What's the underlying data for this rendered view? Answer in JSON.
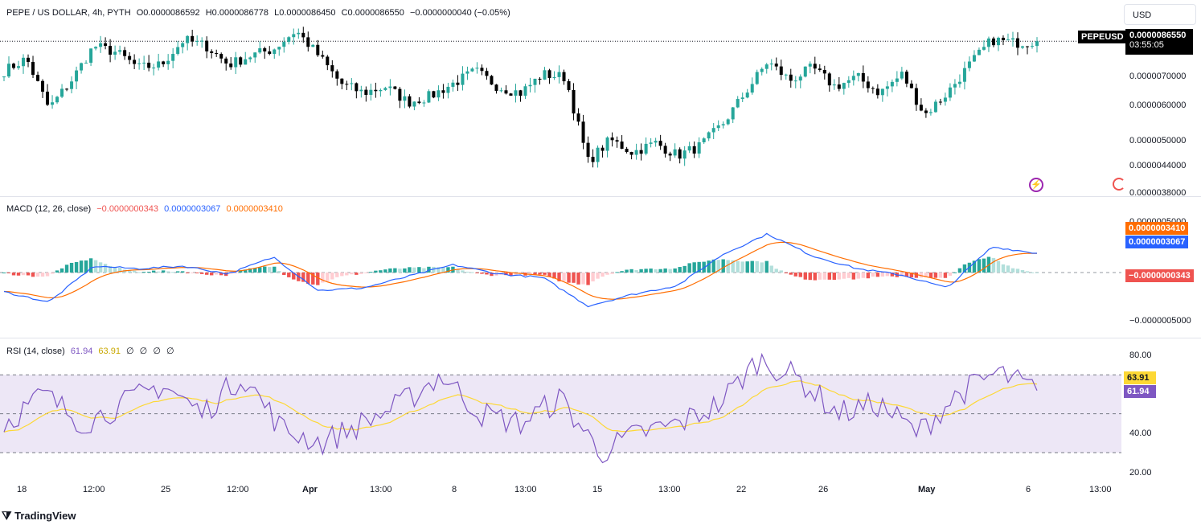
{
  "header": {
    "symbol_line": "PEPE / US DOLLAR, 4h, PYTH",
    "open": "O0.0000086592",
    "high": "H0.0000086778",
    "low": "L0.0000086450",
    "close": "C0.0000086550",
    "change": "−0.0000000040 (−0.05%)"
  },
  "currency_button": "USD",
  "price_tag": {
    "symbol": "PEPEUSD",
    "price": "0.0000086550",
    "countdown": "03:55:05"
  },
  "price_axis": [
    "0.0000070000",
    "0.0000060000",
    "0.0000050000",
    "0.0000044000",
    "0.0000038000"
  ],
  "macd": {
    "label": "MACD (12, 26, close)",
    "hist_value": "−0.0000000343",
    "macd_value": "0.0000003067",
    "signal_value": "0.0000003410",
    "axis_top": "0.0000005000",
    "axis_bottom": "−0.0000005000"
  },
  "rsi": {
    "label": "RSI (14, close)",
    "value": "61.94",
    "ma_value": "63.91",
    "extras": [
      "∅",
      "∅",
      "∅",
      "∅"
    ],
    "axis": [
      "80.00",
      "40.00",
      "20.00"
    ]
  },
  "time_axis": [
    "18",
    "12:00",
    "25",
    "12:00",
    "Apr",
    "13:00",
    "8",
    "13:00",
    "15",
    "13:00",
    "22",
    "26",
    "May",
    "6",
    "13:00"
  ],
  "branding": "TradingView",
  "colors": {
    "up": "#26a69a",
    "down": "#000000",
    "macd": "#2962ff",
    "signal": "#ff6d00",
    "hist_pos_strong": "#26a69a",
    "hist_pos_weak": "#b2dfdb",
    "hist_neg_strong": "#ef5350",
    "hist_neg_weak": "#ffcdd2",
    "rsi": "#7e57c2",
    "rsi_ma": "#fdd835",
    "rsi_band": "#ede7f6"
  },
  "chart_data": {
    "type": "candlestick",
    "title": "PEPE / US DOLLAR, 4h, PYTH",
    "series": [
      {
        "name": "PEPEUSD",
        "close_anchors": [
          7.7,
          8.1,
          6.5,
          7.4,
          8.5,
          8.3,
          7.8,
          7.9,
          8.7,
          8.5,
          7.9,
          8.2,
          8.4,
          9.0,
          8.2,
          7.3,
          7.0,
          7.2,
          6.7,
          6.9,
          7.3,
          7.7,
          7.2,
          7.0,
          7.6,
          7.5,
          4.8,
          5.5,
          5.1,
          5.4,
          5.0,
          5.3,
          6.0,
          7.0,
          8.0,
          7.4,
          7.8,
          7.2,
          7.5,
          7.0,
          7.6,
          6.3,
          7.0,
          7.9,
          8.7,
          8.6,
          8.65
        ]
      },
      {
        "name": "MACD",
        "anchors": [
          -1.5,
          -2.3,
          0.5,
          0.3,
          0.5,
          -0.1,
          1.2,
          -1.4,
          -1.2,
          -0.3,
          0.6,
          -0.1,
          -0.4,
          -2.6,
          -1.7,
          -1.0,
          1.4,
          3.0,
          1.3,
          0.3,
          -0.2,
          -1.2,
          2.0,
          1.5
        ]
      },
      {
        "name": "RSI",
        "anchors": [
          45,
          60,
          45,
          55,
          65,
          50,
          70,
          42,
          35,
          45,
          55,
          70,
          50,
          45,
          58,
          30,
          40,
          45,
          55,
          78,
          68,
          50,
          55,
          40,
          60,
          71,
          62
        ]
      }
    ],
    "price_axis_range": [
      3.8e-06,
      9.2e-06
    ]
  }
}
